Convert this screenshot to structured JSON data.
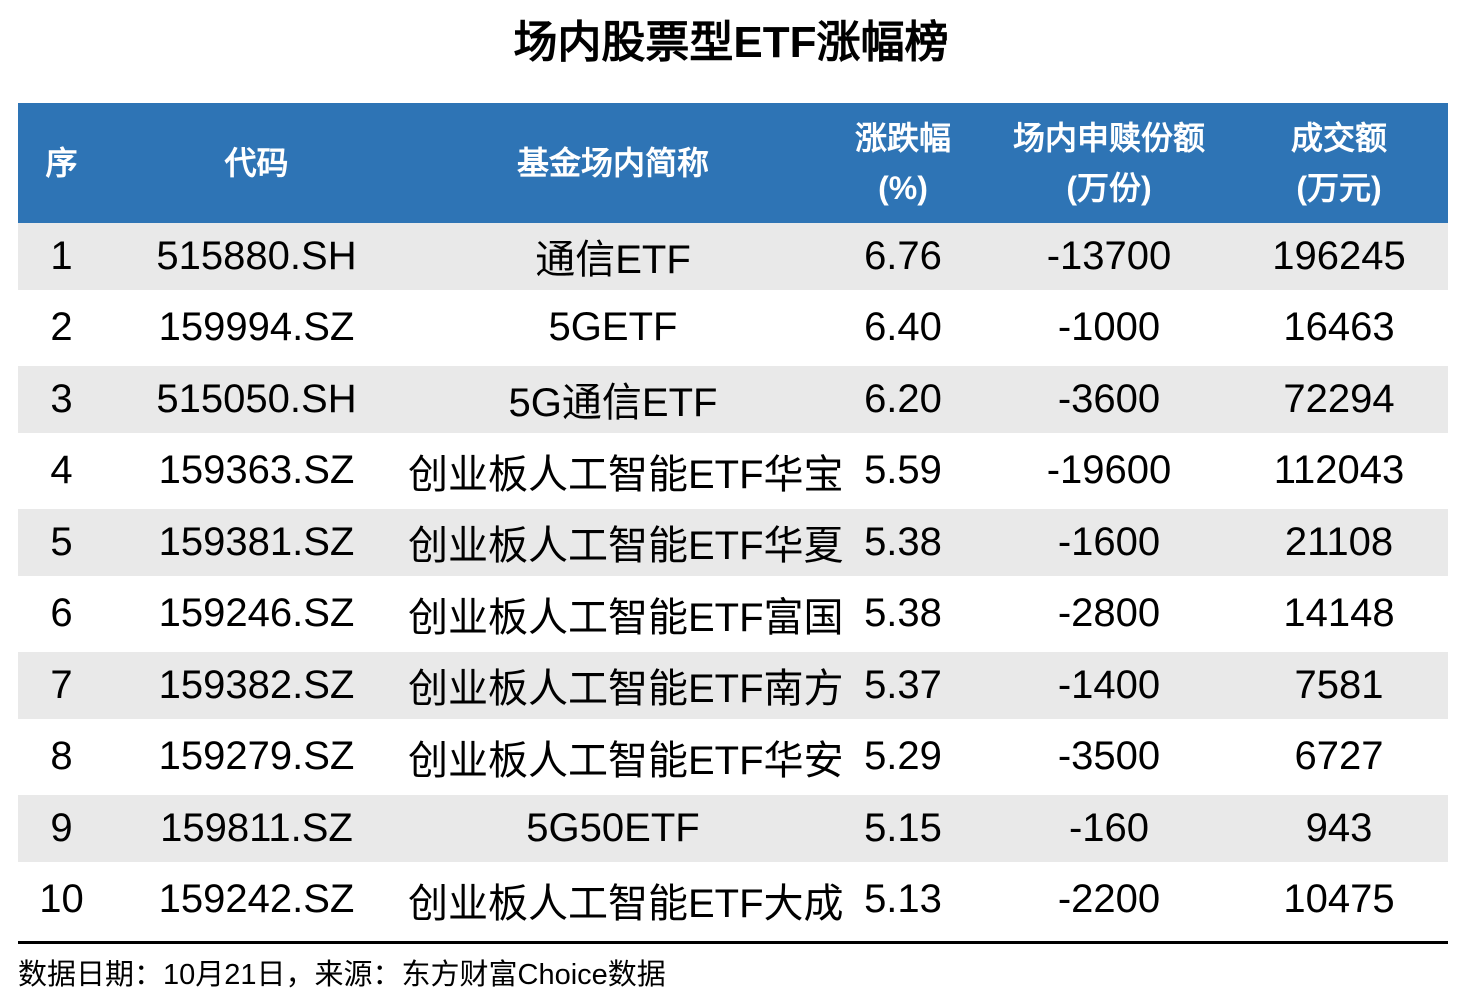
{
  "title": "场内股票型ETF涨幅榜",
  "footer": {
    "text": "数据日期：10月21日，来源：东方财富Choice数据"
  },
  "colors": {
    "header_bg": "#2E74B5",
    "header_text": "#FFFFFF",
    "row_alt_bg": "#E9E9E9",
    "body_text": "#000000"
  },
  "chart_data": {
    "type": "table",
    "title": "场内股票型ETF涨幅榜",
    "columns": [
      {
        "line1": "序",
        "line2": ""
      },
      {
        "line1": "代码",
        "line2": ""
      },
      {
        "line1": "基金场内简称",
        "line2": ""
      },
      {
        "line1": "涨跌幅",
        "line2": "(%)"
      },
      {
        "line1": "场内申赎份额",
        "line2": "(万份)"
      },
      {
        "line1": "成交额",
        "line2": "(万元)"
      }
    ],
    "rows": [
      {
        "seq": "1",
        "code": "515880.SH",
        "name": "通信ETF",
        "change_pct": "6.76",
        "flow_10k": "-13700",
        "turnover_10k": "196245"
      },
      {
        "seq": "2",
        "code": "159994.SZ",
        "name": "5GETF",
        "change_pct": "6.40",
        "flow_10k": "-1000",
        "turnover_10k": "16463"
      },
      {
        "seq": "3",
        "code": "515050.SH",
        "name": "5G通信ETF",
        "change_pct": "6.20",
        "flow_10k": "-3600",
        "turnover_10k": "72294"
      },
      {
        "seq": "4",
        "code": "159363.SZ",
        "name": "创业板人工智能ETF华宝",
        "change_pct": "5.59",
        "flow_10k": "-19600",
        "turnover_10k": "112043"
      },
      {
        "seq": "5",
        "code": "159381.SZ",
        "name": "创业板人工智能ETF华夏",
        "change_pct": "5.38",
        "flow_10k": "-1600",
        "turnover_10k": "21108"
      },
      {
        "seq": "6",
        "code": "159246.SZ",
        "name": "创业板人工智能ETF富国",
        "change_pct": "5.38",
        "flow_10k": "-2800",
        "turnover_10k": "14148"
      },
      {
        "seq": "7",
        "code": "159382.SZ",
        "name": "创业板人工智能ETF南方",
        "change_pct": "5.37",
        "flow_10k": "-1400",
        "turnover_10k": "7581"
      },
      {
        "seq": "8",
        "code": "159279.SZ",
        "name": "创业板人工智能ETF华安",
        "change_pct": "5.29",
        "flow_10k": "-3500",
        "turnover_10k": "6727"
      },
      {
        "seq": "9",
        "code": "159811.SZ",
        "name": "5G50ETF",
        "change_pct": "5.15",
        "flow_10k": "-160",
        "turnover_10k": "943"
      },
      {
        "seq": "10",
        "code": "159242.SZ",
        "name": "创业板人工智能ETF大成",
        "change_pct": "5.13",
        "flow_10k": "-2200",
        "turnover_10k": "10475"
      }
    ]
  }
}
